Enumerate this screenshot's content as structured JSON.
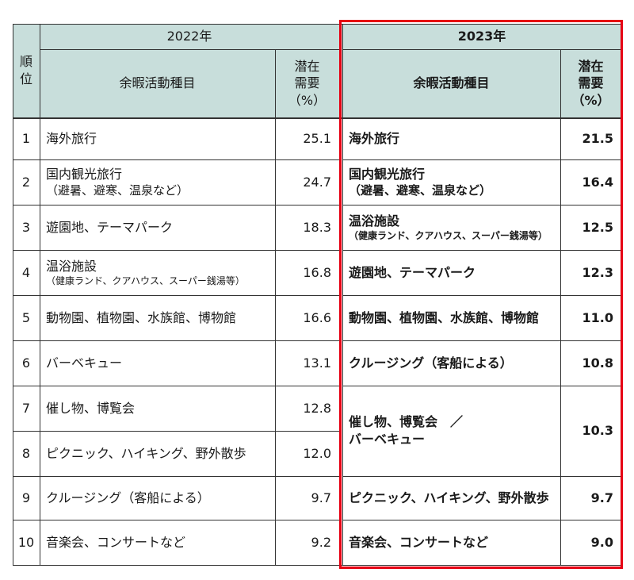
{
  "header": {
    "rank_label": "順\n位",
    "year_2022": "2022年",
    "year_2023": "2023年",
    "activity_col": "余暇活動種目",
    "demand_col": "潜在\n需要\n（%）"
  },
  "rows_2022": [
    {
      "rank": "1",
      "activity": "海外旅行",
      "sub": "",
      "value": "25.1"
    },
    {
      "rank": "2",
      "activity": "国内観光旅行",
      "sub": "（避暑、避寒、温泉など）",
      "value": "24.7"
    },
    {
      "rank": "3",
      "activity": "遊園地、テーマパーク",
      "sub": "",
      "value": "18.3"
    },
    {
      "rank": "4",
      "activity": "温浴施設",
      "sub": "（健康ランド、クアハウス、スーパー銭湯等）",
      "value": "16.8"
    },
    {
      "rank": "5",
      "activity": "動物園、植物園、水族館、博物館",
      "sub": "",
      "value": "16.6"
    },
    {
      "rank": "6",
      "activity": "バーベキュー",
      "sub": "",
      "value": "13.1"
    },
    {
      "rank": "7",
      "activity": "催し物、博覧会",
      "sub": "",
      "value": "12.8"
    },
    {
      "rank": "8",
      "activity": "ピクニック、ハイキング、野外散歩",
      "sub": "",
      "value": "12.0"
    },
    {
      "rank": "9",
      "activity": "クルージング（客船による）",
      "sub": "",
      "value": "9.7"
    },
    {
      "rank": "10",
      "activity": "音楽会、コンサートなど",
      "sub": "",
      "value": "9.2"
    }
  ],
  "rows_2023": [
    {
      "activity": "海外旅行",
      "sub": "",
      "value": "21.5"
    },
    {
      "activity": "国内観光旅行",
      "sub": "（避暑、避寒、温泉など）",
      "value": "16.4"
    },
    {
      "activity": "温浴施設",
      "sub": "（健康ランド、クアハウス、スーパー銭湯等）",
      "value": "12.5"
    },
    {
      "activity": "遊園地、テーマパーク",
      "sub": "",
      "value": "12.3"
    },
    {
      "activity": "動物園、植物園、水族館、博物館",
      "sub": "",
      "value": "11.0"
    },
    {
      "activity": "クルージング（客船による）",
      "sub": "",
      "value": "10.8"
    },
    {
      "activity": "催し物、博覧会　／",
      "sub": "バーベキュー",
      "value": "10.3"
    },
    {
      "activity": "ピクニック、ハイキング、野外散歩",
      "sub": "",
      "value": "9.7"
    },
    {
      "activity": "音楽会、コンサートなど",
      "sub": "",
      "value": "9.0"
    }
  ]
}
